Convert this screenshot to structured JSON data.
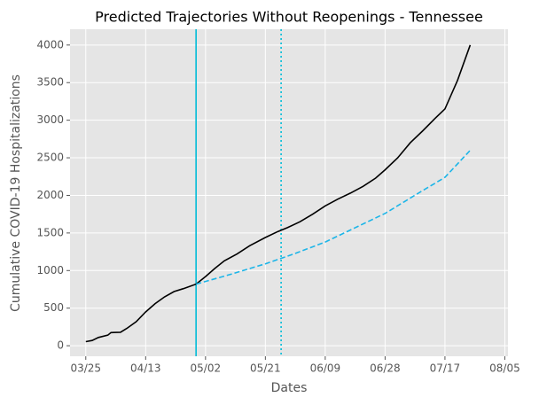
{
  "chart_data": {
    "type": "line",
    "title": "Predicted Trajectories Without Reopenings - Tennessee",
    "xlabel": "Dates",
    "ylabel": "Cumulative COVID-19 Hospitalizations",
    "xlim": [
      "03/20",
      "08/06"
    ],
    "xticks": [
      "03/25",
      "04/13",
      "05/02",
      "05/21",
      "06/09",
      "06/28",
      "07/17",
      "08/05"
    ],
    "ylim": [
      -140,
      4210
    ],
    "yticks": [
      0,
      500,
      1000,
      1500,
      2000,
      2500,
      3000,
      3500,
      4000
    ],
    "grid": true,
    "series": [
      {
        "color": "#000000",
        "dash": "solid",
        "x": [
          "03/25",
          "03/27",
          "03/29",
          "04/01",
          "04/02",
          "04/05",
          "04/07",
          "04/10",
          "04/13",
          "04/16",
          "04/19",
          "04/22",
          "04/25",
          "04/29",
          "05/02",
          "05/05",
          "05/08",
          "05/12",
          "05/16",
          "05/21",
          "05/25",
          "05/28",
          "06/01",
          "06/05",
          "06/09",
          "06/13",
          "06/17",
          "06/21",
          "06/25",
          "06/28",
          "07/02",
          "07/06",
          "07/10",
          "07/14",
          "07/17",
          "07/21",
          "07/25"
        ],
        "values": [
          55,
          70,
          110,
          140,
          175,
          180,
          230,
          320,
          450,
          560,
          650,
          720,
          760,
          820,
          920,
          1030,
          1130,
          1220,
          1330,
          1440,
          1520,
          1570,
          1650,
          1750,
          1860,
          1950,
          2030,
          2120,
          2230,
          2340,
          2500,
          2700,
          2860,
          3030,
          3150,
          3530,
          4000
        ]
      },
      {
        "color": "#1cb5e8",
        "dash": "dashed",
        "x": [
          "04/29",
          "05/10",
          "05/21",
          "05/30",
          "06/09",
          "06/18",
          "06/28",
          "07/07",
          "07/17",
          "07/25"
        ],
        "values": [
          820,
          950,
          1090,
          1220,
          1380,
          1560,
          1760,
          1990,
          2240,
          2600
        ]
      }
    ],
    "vlines": [
      {
        "x": "04/29",
        "color": "#00bcd8",
        "dash": "solid"
      },
      {
        "x": "05/26",
        "color": "#00bcd8",
        "dash": "dotted"
      }
    ]
  }
}
